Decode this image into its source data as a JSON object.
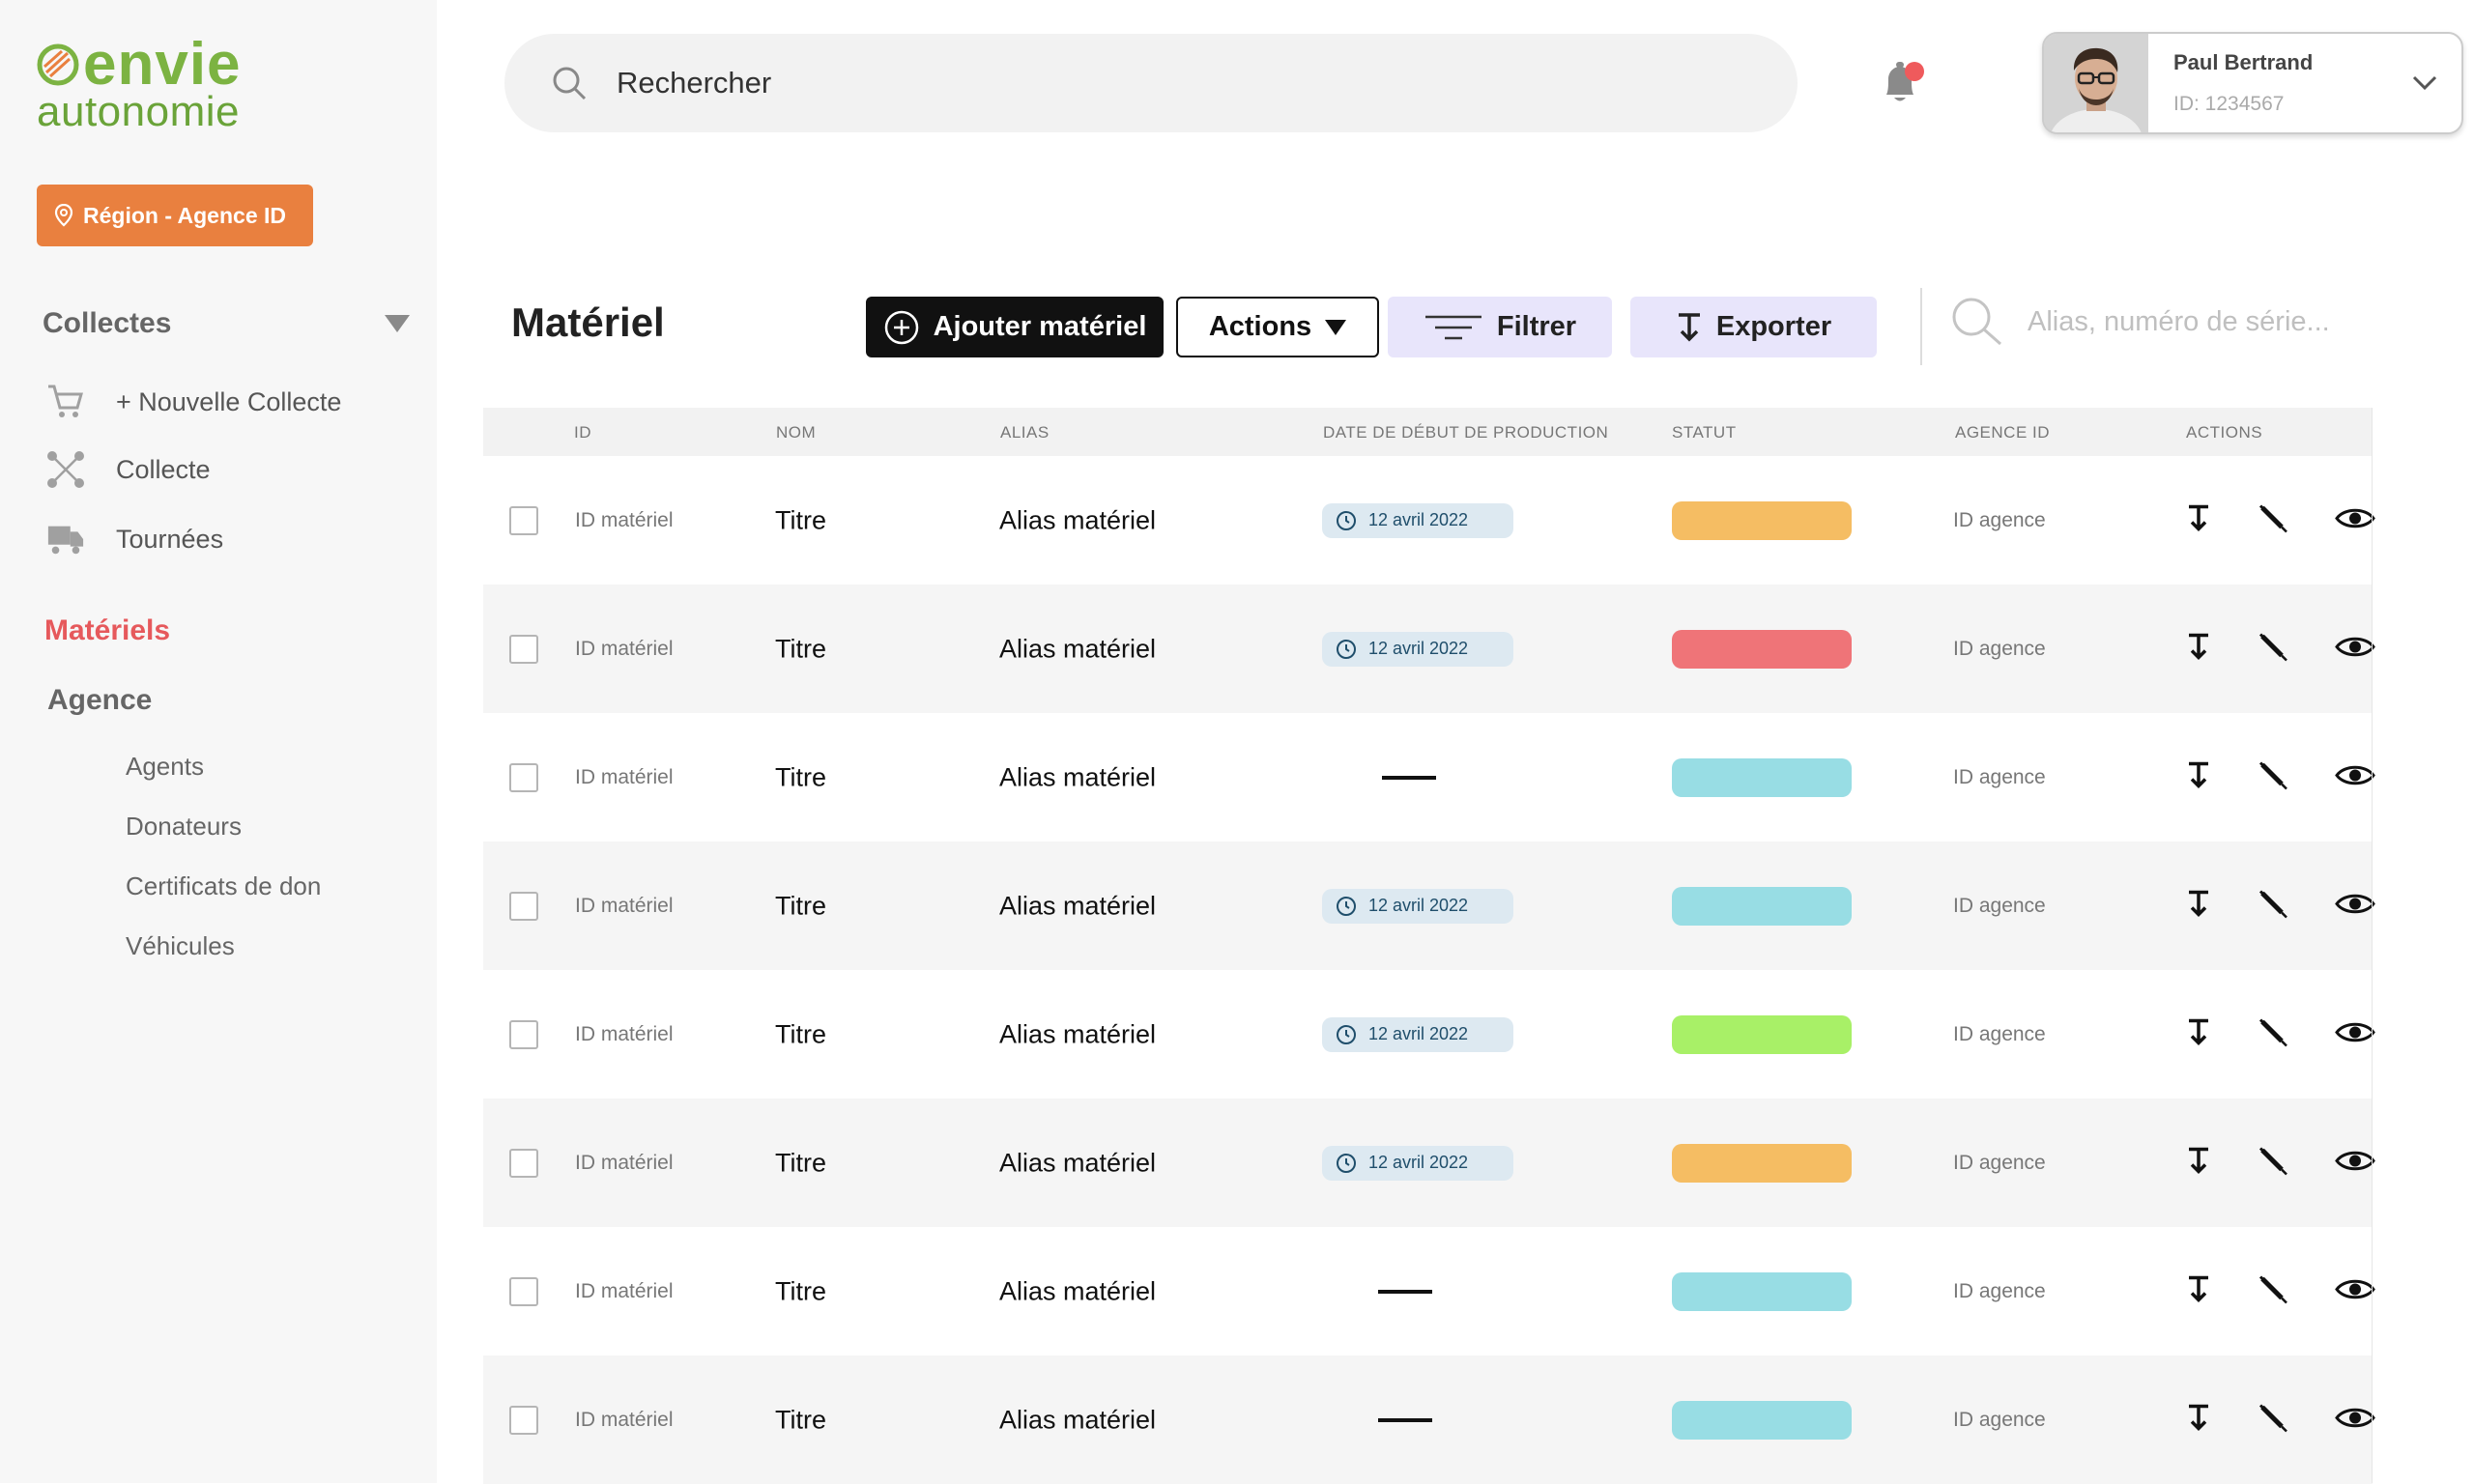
{
  "brand": {
    "line1": "envie",
    "line2": "autonomie"
  },
  "sidebar": {
    "region_button": "Région - Agence ID",
    "collectes": {
      "label": "Collectes",
      "items": [
        {
          "label": "+ Nouvelle Collecte",
          "icon": "cart-icon"
        },
        {
          "label": "Collecte",
          "icon": "network-icon"
        },
        {
          "label": "Tournées",
          "icon": "truck-icon"
        }
      ]
    },
    "materiels": "Matériels",
    "agence": {
      "label": "Agence",
      "items": [
        "Agents",
        "Donateurs",
        "Certificats de don",
        "Véhicules"
      ]
    }
  },
  "header": {
    "search_placeholder": "Rechercher",
    "user": {
      "name": "Paul Bertrand",
      "id": "ID: 1234567"
    }
  },
  "toolbar": {
    "title": "Matériel",
    "add_label": "Ajouter matériel",
    "actions_label": "Actions",
    "filter_label": "Filtrer",
    "export_label": "Exporter",
    "search_placeholder": "Alias, numéro de série..."
  },
  "table": {
    "columns": [
      "ID",
      "NOM",
      "ALIAS",
      "DATE DE DÉBUT DE PRODUCTION",
      "STATUT",
      "AGENCE ID",
      "ACTIONS"
    ],
    "rows": [
      {
        "id": "ID matériel",
        "nom": "Titre",
        "alias": "Alias matériel",
        "date": "12 avril 2022",
        "status_color": "#f5bd63",
        "agence": "ID agence"
      },
      {
        "id": "ID matériel",
        "nom": "Titre",
        "alias": "Alias matériel",
        "date": "12 avril 2022",
        "status_color": "#ef7478",
        "agence": "ID agence"
      },
      {
        "id": "ID matériel",
        "nom": "Titre",
        "alias": "Alias matériel",
        "date": null,
        "status_color": "#98dde4",
        "agence": "ID agence"
      },
      {
        "id": "ID matériel",
        "nom": "Titre",
        "alias": "Alias matériel",
        "date": "12 avril 2022",
        "status_color": "#98dde4",
        "agence": "ID agence"
      },
      {
        "id": "ID matériel",
        "nom": "Titre",
        "alias": "Alias matériel",
        "date": "12 avril 2022",
        "status_color": "#a8f067",
        "agence": "ID agence"
      },
      {
        "id": "ID matériel",
        "nom": "Titre",
        "alias": "Alias matériel",
        "date": "12 avril 2022",
        "status_color": "#f5bd63",
        "agence": "ID agence"
      },
      {
        "id": "ID matériel",
        "nom": "Titre",
        "alias": "Alias matériel",
        "date": null,
        "status_color": "#98dde4",
        "agence": "ID agence"
      },
      {
        "id": "ID matériel",
        "nom": "Titre",
        "alias": "Alias matériel",
        "date": null,
        "status_color": "#98dde4",
        "agence": "ID agence"
      }
    ]
  },
  "colors": {
    "accent_orange": "#e9803f",
    "active_red": "#e6595c",
    "brand_green": "#7cb342",
    "button_lavender": "#e8e5fb"
  }
}
